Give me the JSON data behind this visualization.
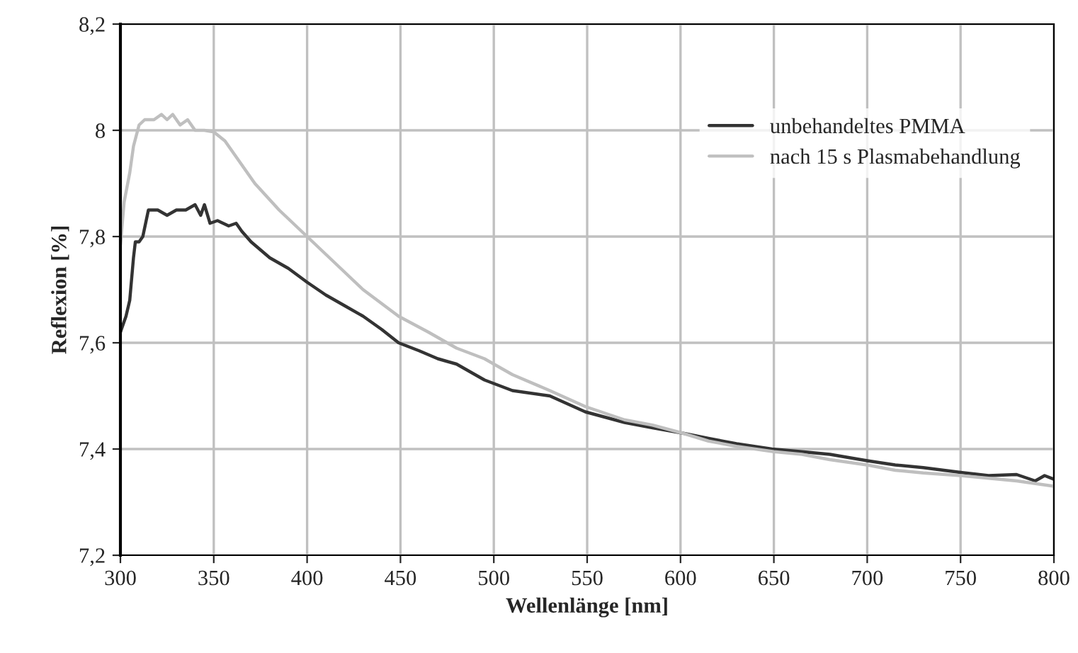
{
  "chart_data": {
    "type": "line",
    "xlabel": "Wellenlänge [nm]",
    "ylabel": "Reflexion [%]",
    "series": [
      {
        "name": "unbehandeltes PMMA",
        "color": "#333333",
        "x": [
          300,
          303,
          305,
          307,
          308,
          310,
          312,
          315,
          320,
          325,
          330,
          335,
          340,
          343,
          345,
          348,
          352,
          358,
          362,
          365,
          370,
          380,
          390,
          400,
          410,
          420,
          430,
          440,
          449,
          460,
          470,
          480,
          495,
          510,
          530,
          549,
          570,
          585,
          601,
          615,
          630,
          649,
          665,
          680,
          700,
          715,
          730,
          750,
          765,
          780,
          790,
          795,
          800
        ],
        "values": [
          7.62,
          7.65,
          7.68,
          7.76,
          7.79,
          7.79,
          7.8,
          7.85,
          7.85,
          7.84,
          7.85,
          7.85,
          7.86,
          7.84,
          7.86,
          7.825,
          7.83,
          7.82,
          7.825,
          7.81,
          7.79,
          7.76,
          7.74,
          7.714,
          7.69,
          7.67,
          7.65,
          7.625,
          7.6,
          7.585,
          7.57,
          7.56,
          7.53,
          7.51,
          7.5,
          7.47,
          7.45,
          7.44,
          7.43,
          7.42,
          7.41,
          7.4,
          7.395,
          7.39,
          7.378,
          7.37,
          7.365,
          7.356,
          7.35,
          7.352,
          7.34,
          7.35,
          7.343
        ]
      },
      {
        "name": "nach 15 s Plasmabehandlung",
        "color": "#bfbfbf",
        "x": [
          300,
          302,
          305,
          307,
          310,
          313,
          318,
          322,
          325,
          328,
          332,
          336,
          340,
          345,
          350,
          356,
          362,
          372,
          385,
          400,
          415,
          430,
          449,
          465,
          480,
          495,
          510,
          530,
          549,
          570,
          585,
          601,
          615,
          630,
          650,
          665,
          680,
          700,
          715,
          730,
          750,
          765,
          780,
          790,
          800
        ],
        "values": [
          7.785,
          7.865,
          7.92,
          7.97,
          8.01,
          8.02,
          8.02,
          8.03,
          8.02,
          8.03,
          8.01,
          8.02,
          8.0,
          8.0,
          7.997,
          7.98,
          7.95,
          7.9,
          7.85,
          7.8,
          7.75,
          7.7,
          7.65,
          7.62,
          7.59,
          7.57,
          7.54,
          7.51,
          7.48,
          7.455,
          7.445,
          7.43,
          7.415,
          7.405,
          7.395,
          7.39,
          7.38,
          7.37,
          7.36,
          7.355,
          7.35,
          7.345,
          7.34,
          7.335,
          7.33
        ]
      }
    ],
    "xlim": [
      300,
      800
    ],
    "xticks": [
      300,
      350,
      400,
      450,
      500,
      550,
      600,
      650,
      700,
      750,
      800
    ],
    "ylim": [
      7.2,
      8.2
    ],
    "yticks": [
      {
        "value": 7.2,
        "label": "7,2"
      },
      {
        "value": 7.4,
        "label": "7,4"
      },
      {
        "value": 7.6,
        "label": "7,6"
      },
      {
        "value": 7.8,
        "label": "7,8"
      },
      {
        "value": 8.0,
        "label": "8"
      },
      {
        "value": 8.2,
        "label": "8,2"
      }
    ],
    "grid": true,
    "legend": "top right",
    "marker": "none",
    "line_style": "solid"
  }
}
